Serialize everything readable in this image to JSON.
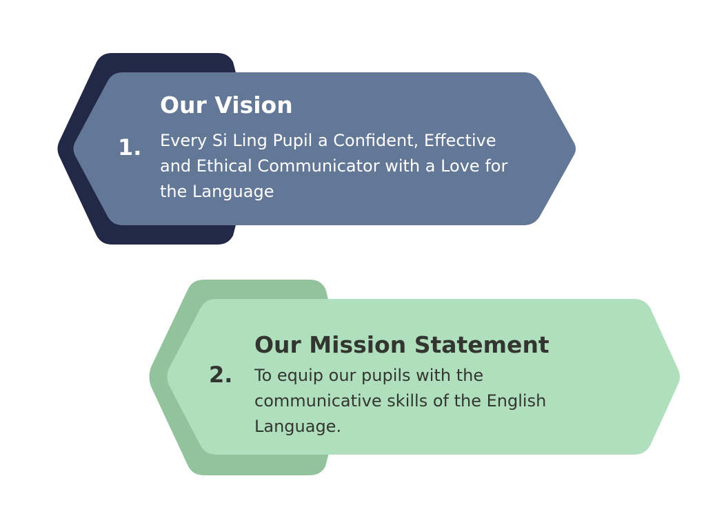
{
  "colors": {
    "vision_back": "#212947",
    "vision_front": "#637797",
    "vision_text": "#ffffff",
    "mission_back": "#92c39d",
    "mission_front": "#b0dfbd",
    "mission_text": "#333630"
  },
  "items": [
    {
      "number": "1.",
      "title": "Our Vision",
      "lines": [
        "Every Si Ling Pupil a Confident, Effective",
        "and Ethical Communicator with a Love for",
        "the Language"
      ]
    },
    {
      "number": "2.",
      "title": "Our Mission Statement",
      "lines": [
        "To equip our pupils with the",
        "communicative skills of the English",
        "Language."
      ]
    }
  ]
}
